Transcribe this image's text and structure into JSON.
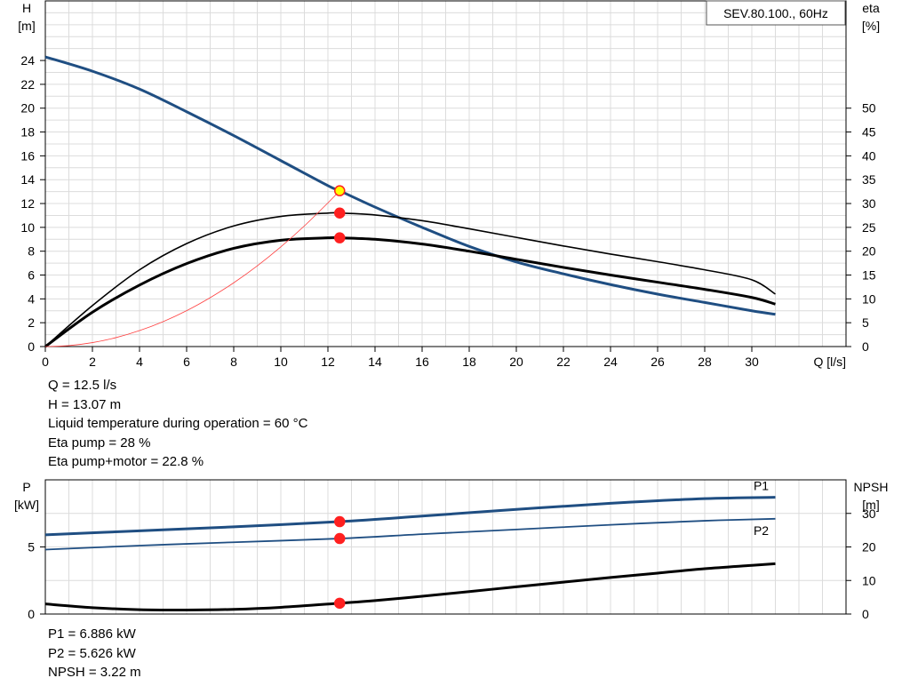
{
  "chart_data": [
    {
      "type": "line",
      "title": "SEV.80.100., 60Hz",
      "y_left_label": [
        "H",
        "[m]"
      ],
      "y_right_label": [
        "eta",
        "[%]"
      ],
      "xlabel": "Q [l/s]",
      "xlim": [
        0,
        34
      ],
      "ylim": [
        0,
        29
      ],
      "y2lim": [
        0,
        72.5
      ],
      "x_ticks": [
        0,
        2,
        4,
        6,
        8,
        10,
        12,
        14,
        16,
        18,
        20,
        22,
        24,
        26,
        28,
        30
      ],
      "y_ticks": [
        0,
        2,
        4,
        6,
        8,
        10,
        12,
        14,
        16,
        18,
        20,
        22,
        24
      ],
      "y2_ticks": [
        0,
        5,
        10,
        15,
        20,
        25,
        30,
        35,
        40,
        45,
        50
      ],
      "grid": true,
      "series": [
        {
          "id": "head",
          "axis": "left",
          "color": "#1f4e82",
          "width": 3,
          "x": [
            0,
            2,
            4,
            6,
            8,
            10,
            12,
            12.5,
            14,
            16,
            18,
            20,
            22,
            24,
            26,
            28,
            30,
            31
          ],
          "values": [
            24.3,
            23.1,
            21.6,
            19.7,
            17.7,
            15.6,
            13.5,
            13.07,
            11.7,
            10.0,
            8.4,
            7.1,
            6.1,
            5.2,
            4.4,
            3.7,
            3.0,
            2.7
          ]
        },
        {
          "id": "eta-pump",
          "axis": "right",
          "color": "#000000",
          "width": 1.6,
          "x": [
            0,
            2,
            4,
            6,
            8,
            10,
            12,
            12.5,
            14,
            16,
            18,
            20,
            22,
            24,
            26,
            28,
            30,
            31
          ],
          "values": [
            0,
            8.6,
            16.1,
            21.6,
            25.3,
            27.3,
            28.0,
            28.0,
            27.6,
            26.4,
            24.7,
            22.9,
            21.1,
            19.4,
            17.8,
            16.1,
            14.0,
            11.0
          ]
        },
        {
          "id": "eta-pump-motor",
          "axis": "right",
          "color": "#000000",
          "width": 3,
          "x": [
            0,
            2,
            4,
            6,
            8,
            10,
            12,
            12.5,
            14,
            16,
            18,
            20,
            22,
            24,
            26,
            28,
            30,
            31
          ],
          "values": [
            0,
            7.2,
            12.9,
            17.4,
            20.6,
            22.3,
            22.8,
            22.8,
            22.5,
            21.5,
            20.0,
            18.3,
            16.6,
            15.0,
            13.5,
            12.0,
            10.3,
            8.9
          ]
        },
        {
          "id": "system-curve",
          "axis": "left",
          "color": "#ff4040",
          "width": 0.8,
          "x": [
            0,
            1,
            2,
            3,
            4,
            5,
            6,
            7,
            8,
            9,
            10,
            11,
            12,
            12.5
          ],
          "values": [
            0,
            0.08,
            0.33,
            0.75,
            1.34,
            2.09,
            3.01,
            4.1,
            5.35,
            6.77,
            8.36,
            10.12,
            12.05,
            13.07
          ]
        }
      ],
      "points": [
        {
          "axis": "left",
          "x": 12.5,
          "y": 13.07,
          "color": "#ffff00",
          "stroke": "#ff2020"
        },
        {
          "axis": "right",
          "x": 12.5,
          "y": 28.0,
          "color": "#ff2020",
          "stroke": "#ff2020"
        },
        {
          "axis": "right",
          "x": 12.5,
          "y": 22.8,
          "color": "#ff2020",
          "stroke": "#ff2020"
        }
      ]
    },
    {
      "type": "line",
      "y_left_label": [
        "P",
        "[kW]"
      ],
      "y_right_label": [
        "NPSH",
        "[m]"
      ],
      "xlim": [
        0,
        34
      ],
      "ylim": [
        0,
        10
      ],
      "y2lim": [
        0,
        40
      ],
      "y_ticks": [
        0,
        5
      ],
      "y2_ticks": [
        0,
        10,
        20,
        30
      ],
      "grid": true,
      "series": [
        {
          "id": "p1",
          "name": "P1",
          "axis": "left",
          "color": "#1f4e82",
          "width": 3,
          "x": [
            0,
            4,
            8,
            12.5,
            16,
            20,
            24,
            28,
            31
          ],
          "values": [
            5.9,
            6.2,
            6.5,
            6.886,
            7.3,
            7.8,
            8.25,
            8.6,
            8.7
          ]
        },
        {
          "id": "p2",
          "name": "P2",
          "axis": "left",
          "color": "#1f4e82",
          "width": 1.8,
          "x": [
            0,
            4,
            8,
            12.5,
            16,
            20,
            24,
            28,
            31
          ],
          "values": [
            4.8,
            5.1,
            5.35,
            5.626,
            5.95,
            6.3,
            6.65,
            6.95,
            7.1
          ]
        },
        {
          "id": "npsh",
          "axis": "right",
          "color": "#000000",
          "width": 3,
          "x": [
            0,
            2,
            4,
            6,
            8,
            10,
            12.5,
            14,
            16,
            18,
            20,
            22,
            24,
            26,
            28,
            30,
            31
          ],
          "values": [
            3.0,
            1.9,
            1.3,
            1.2,
            1.4,
            2.0,
            3.22,
            4.0,
            5.3,
            6.7,
            8.1,
            9.5,
            10.9,
            12.2,
            13.5,
            14.5,
            15.0
          ]
        }
      ],
      "points": [
        {
          "axis": "left",
          "x": 12.5,
          "y": 6.886,
          "color": "#ff2020",
          "stroke": "#ff2020"
        },
        {
          "axis": "left",
          "x": 12.5,
          "y": 5.626,
          "color": "#ff2020",
          "stroke": "#ff2020"
        },
        {
          "axis": "right",
          "x": 12.5,
          "y": 3.22,
          "color": "#ff2020",
          "stroke": "#ff2020"
        }
      ]
    }
  ],
  "info_top": [
    "Q = 12.5 l/s",
    "H = 13.07 m",
    "Liquid temperature during operation = 60 °C",
    "Eta pump = 28 %",
    "Eta pump+motor = 22.8 %"
  ],
  "info_bottom": [
    "P1 = 6.886 kW",
    "P2 = 5.626 kW",
    "NPSH = 3.22 m"
  ]
}
